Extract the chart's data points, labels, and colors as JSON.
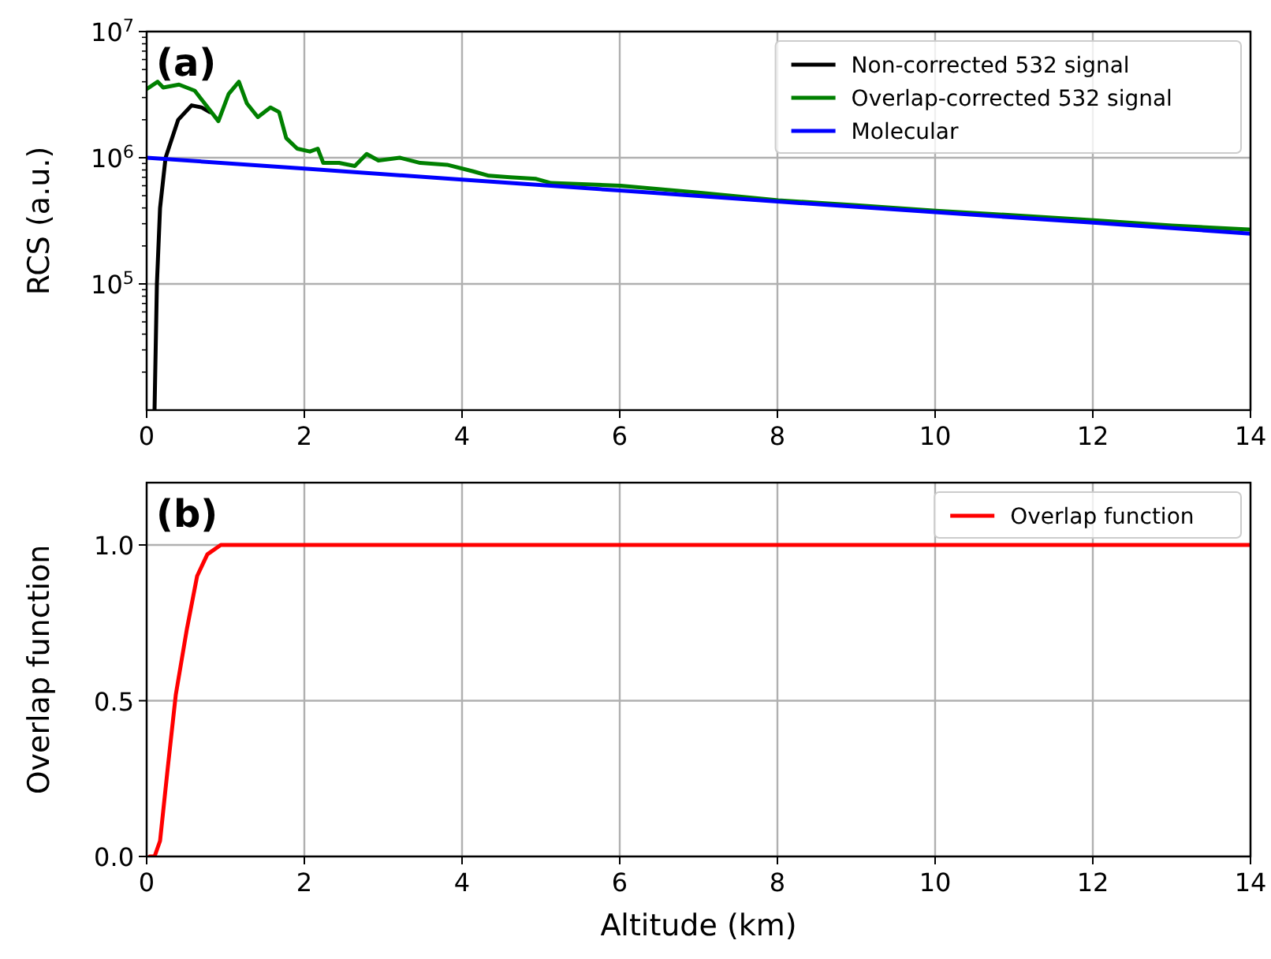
{
  "chart_data": [
    {
      "type": "line",
      "ylabel": "RCS (a.u.)",
      "annotations": [
        "(a)"
      ],
      "log": "y",
      "grid": true,
      "legend": "top right",
      "xlim": [
        0,
        14
      ],
      "xticks": [
        0,
        2,
        4,
        6,
        8,
        10,
        12,
        14
      ],
      "ylim": [
        10000,
        10000000
      ],
      "yticks": [
        {
          "value": 100000,
          "label": "10$^{5}$"
        },
        {
          "value": 1000000,
          "label": "10$^{6}$"
        },
        {
          "value": 10000000,
          "label": "10$^{7}$"
        }
      ],
      "series": [
        {
          "name": "Non-corrected 532 signal",
          "color": "#000000",
          "x": [
            0.1,
            0.13,
            0.17,
            0.24,
            0.4,
            0.57,
            0.7,
            0.8
          ],
          "values": [
            10000,
            100000,
            400000,
            1000000,
            2000000,
            2600000,
            2500000,
            2300000
          ]
        },
        {
          "name": "Overlap-corrected 532 signal",
          "color": "#008000",
          "x": [
            0,
            0.14,
            0.21,
            0.41,
            0.61,
            0.91,
            1.04,
            1.17,
            1.27,
            1.41,
            1.57,
            1.68,
            1.77,
            1.91,
            2.07,
            2.17,
            2.24,
            2.44,
            2.64,
            2.79,
            2.94,
            3.21,
            3.47,
            3.81,
            4.14,
            4.34,
            4.61,
            4.94,
            5.13,
            6.01,
            7,
            8.01,
            9,
            10.01,
            11,
            12.01,
            13,
            13.98
          ],
          "values": [
            3500000,
            4000000,
            3600000,
            3800000,
            3400000,
            1950000,
            3200000,
            4000000,
            2700000,
            2100000,
            2500000,
            2300000,
            1430000,
            1180000,
            1120000,
            1180000,
            910000,
            910000,
            860000,
            1070000,
            950000,
            1000000,
            910000,
            880000,
            780000,
            720000,
            700000,
            680000,
            630000,
            600000,
            530000,
            460000,
            420000,
            380000,
            350000,
            320000,
            290000,
            270000
          ]
        },
        {
          "name": "Molecular",
          "color": "#0000ff",
          "x": [
            0,
            2,
            4,
            6,
            8,
            10,
            12,
            14
          ],
          "values": [
            1000000,
            820000,
            670000,
            550000,
            450000,
            370000,
            306000,
            250000
          ]
        }
      ]
    },
    {
      "type": "line",
      "xlabel": "Altitude (km)",
      "ylabel": "Overlap function",
      "annotations": [
        "(b)"
      ],
      "grid": true,
      "legend": "top right",
      "xlim": [
        0,
        14
      ],
      "xticks": [
        0,
        2,
        4,
        6,
        8,
        10,
        12,
        14
      ],
      "ylim": [
        0,
        1.2
      ],
      "yticks": [
        {
          "value": 0,
          "label": "0.0"
        },
        {
          "value": 0.5,
          "label": "0.5"
        },
        {
          "value": 1,
          "label": "1.0"
        }
      ],
      "series": [
        {
          "name": "Overlap function",
          "color": "#ff0000",
          "x": [
            0.04,
            0.1,
            0.17,
            0.27,
            0.37,
            0.51,
            0.64,
            0.77,
            0.94,
            1.27,
            14
          ],
          "values": [
            0,
            0,
            0.05,
            0.29,
            0.52,
            0.73,
            0.9,
            0.97,
            1.0,
            1.0,
            1.0
          ]
        }
      ]
    }
  ]
}
